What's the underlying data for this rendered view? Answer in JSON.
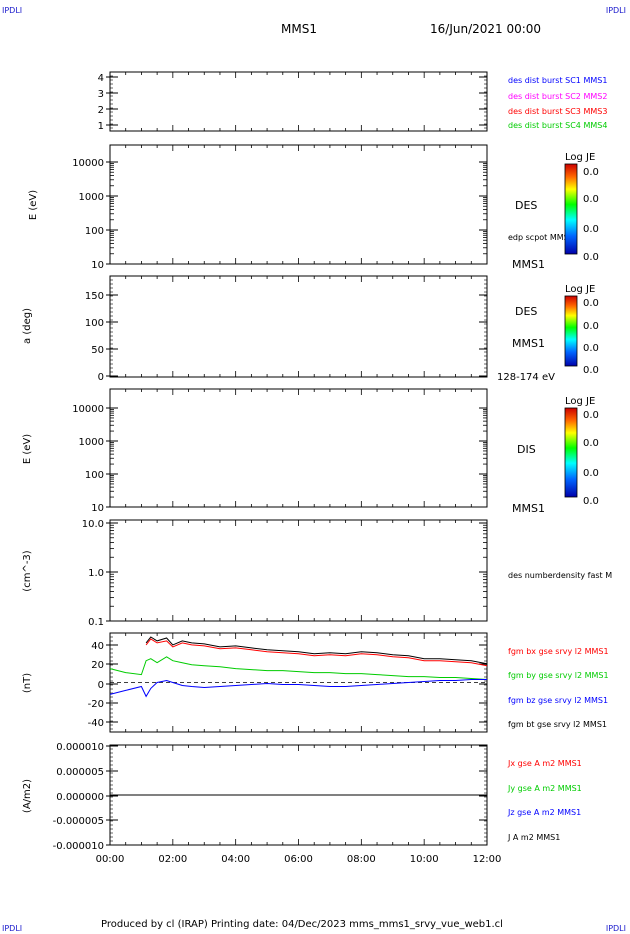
{
  "header": {
    "corner_tl": "IPDLI",
    "corner_tr": "IPDLI",
    "corner_bl": "IPDLI",
    "corner_br": "IPDLI",
    "spacecraft": "MMS1",
    "datetime": "16/Jun/2021 00:00"
  },
  "footer": {
    "text": "Produced by cl (IRAP)   Printing date: 04/Dec/2023   mms_mms1_srvy_vue_web1.cl"
  },
  "colors": {
    "blue": "#0000ff",
    "magenta": "#ff00ff",
    "red": "#ff0000",
    "green": "#00cc00",
    "black": "#000000"
  },
  "chart_data": [
    {
      "type": "line",
      "panel": "sc-number",
      "ylabel": "",
      "yticks": [
        "4",
        "3",
        "2",
        "1"
      ],
      "legend": [
        {
          "text": "des dist burst SC1 MMS1",
          "color": "#0000ff"
        },
        {
          "text": "des dist burst SC2 MMS2",
          "color": "#ff00ff"
        },
        {
          "text": "des dist burst SC3 MMS3",
          "color": "#ff0000"
        },
        {
          "text": "des dist burst SC4 MMS4",
          "color": "#00cc00"
        }
      ]
    },
    {
      "type": "heatmap",
      "panel": "des-energy",
      "ylabel": "E (eV)",
      "scale": "log",
      "yticks": [
        "10000",
        "1000",
        "100",
        "10"
      ],
      "labels": [
        "DES",
        "edp scpot MMS1",
        "MMS1"
      ],
      "colorbar": {
        "title": "Log JE",
        "ticks": [
          "0.0",
          "0.0",
          "0.0",
          "0.0"
        ]
      }
    },
    {
      "type": "heatmap",
      "panel": "des-pitch",
      "ylabel": "a (deg)",
      "yticks": [
        "150",
        "100",
        "50",
        "0"
      ],
      "labels": [
        "DES",
        "MMS1",
        "128-174 eV"
      ],
      "colorbar": {
        "title": "Log JE",
        "ticks": [
          "0.0",
          "0.0",
          "0.0",
          "0.0"
        ]
      }
    },
    {
      "type": "heatmap",
      "panel": "dis-energy",
      "ylabel": "E (eV)",
      "scale": "log",
      "yticks": [
        "10000",
        "1000",
        "100",
        "10"
      ],
      "labels": [
        "DIS",
        "MMS1"
      ],
      "colorbar": {
        "title": "Log JE",
        "ticks": [
          "0.0",
          "0.0",
          "0.0",
          "0.0"
        ]
      }
    },
    {
      "type": "line",
      "panel": "density",
      "ylabel": "(cm^-3)",
      "scale": "log",
      "yticks": [
        "10.0",
        "1.0",
        "0.1"
      ],
      "legend": [
        {
          "text": "des numberdensity fast M",
          "color": "#000000"
        }
      ]
    },
    {
      "type": "line",
      "panel": "magnetic-field",
      "ylabel": "(nT)",
      "ylim": [
        -50,
        50
      ],
      "yticks": [
        "40",
        "20",
        "0",
        "-20",
        "-40"
      ],
      "legend": [
        {
          "text": "fgm bx gse srvy l2 MMS1",
          "color": "#ff0000"
        },
        {
          "text": "fgm by gse srvy l2 MMS1",
          "color": "#00cc00"
        },
        {
          "text": "fgm bz gse srvy l2 MMS1",
          "color": "#0000ff"
        },
        {
          "text": "fgm bt gse srvy l2 MMS1",
          "color": "#000000"
        }
      ],
      "x": [
        0,
        0.5,
        1.0,
        1.15,
        1.3,
        1.5,
        1.8,
        2.0,
        2.3,
        2.6,
        3.0,
        3.5,
        4.0,
        4.5,
        5.0,
        5.5,
        6.0,
        6.5,
        7.0,
        7.5,
        8.0,
        8.5,
        9.0,
        9.5,
        10.0,
        10.5,
        11.0,
        11.5,
        12.0
      ],
      "series": [
        {
          "name": "fgm bx gse srvy l2 MMS1",
          "color": "#ff0000",
          "values": [
            null,
            null,
            null,
            38,
            44,
            40,
            42,
            36,
            40,
            38,
            37,
            34,
            35,
            33,
            31,
            30,
            29,
            27,
            28,
            27,
            29,
            28,
            26,
            25,
            22,
            22,
            21,
            20,
            17
          ]
        },
        {
          "name": "fgm by gse srvy l2 MMS1",
          "color": "#00cc00",
          "values": [
            14,
            10,
            8,
            22,
            24,
            20,
            26,
            22,
            20,
            18,
            17,
            16,
            14,
            13,
            12,
            12,
            11,
            10,
            10,
            9,
            9,
            8,
            7,
            6,
            6,
            5,
            5,
            4,
            3
          ]
        },
        {
          "name": "fgm bz gse srvy l2 MMS1",
          "color": "#0000ff",
          "values": [
            -12,
            -8,
            -4,
            -14,
            -6,
            0,
            2,
            0,
            -3,
            -4,
            -5,
            -4,
            -3,
            -2,
            -1,
            -2,
            -2,
            -3,
            -4,
            -4,
            -3,
            -2,
            -1,
            0,
            1,
            2,
            2,
            3,
            3
          ]
        },
        {
          "name": "fgm bt gse srvy l2 MMS1",
          "color": "#000000",
          "values": [
            null,
            null,
            null,
            40,
            46,
            42,
            45,
            38,
            42,
            40,
            39,
            36,
            37,
            35,
            33,
            32,
            31,
            29,
            30,
            29,
            31,
            30,
            28,
            27,
            24,
            24,
            23,
            22,
            19
          ]
        }
      ]
    },
    {
      "type": "line",
      "panel": "current-density",
      "ylabel": "(A/m2)",
      "ylim": [
        -1e-05,
        1e-05
      ],
      "yticks": [
        "0.000010",
        "0.000005",
        "0.000000",
        "-0.000005",
        "-0.000010"
      ],
      "legend": [
        {
          "text": "Jx gse A m2 MMS1",
          "color": "#ff0000"
        },
        {
          "text": "Jy gse A m2 MMS1",
          "color": "#00cc00"
        },
        {
          "text": "Jz gse A m2 MMS1",
          "color": "#0000ff"
        },
        {
          "text": "J A m2 MMS1",
          "color": "#000000"
        }
      ],
      "x": [
        0,
        2,
        4,
        6,
        8,
        10,
        12
      ],
      "series": [
        {
          "name": "J A m2 MMS1",
          "color": "#000000",
          "values": [
            0,
            0,
            0,
            0,
            0,
            0,
            0
          ]
        }
      ]
    }
  ],
  "time_axis": {
    "range": [
      0,
      12
    ],
    "ticks": [
      "00:00",
      "02:00",
      "04:00",
      "06:00",
      "08:00",
      "10:00",
      "12:00"
    ]
  }
}
